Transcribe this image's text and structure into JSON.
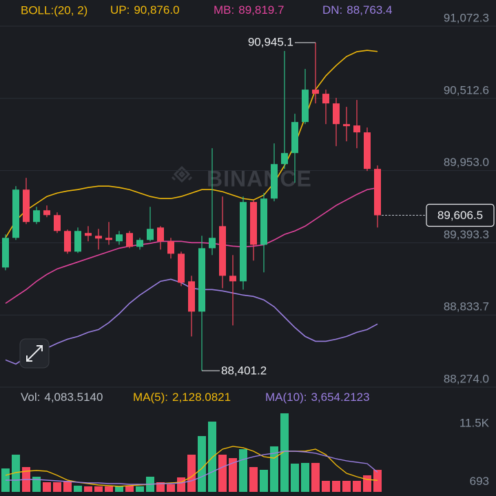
{
  "chart_data": [
    {
      "type": "candlestick",
      "indicator": "BOLL:(20, 2)",
      "watermark": "BINANCE",
      "up_color": "#2ebd85",
      "down_color": "#f6465d",
      "candles": {
        "open": [
          89201.6,
          89431.4,
          89805.5,
          89554.3,
          89645.2,
          89607.8,
          89484.8,
          89324.5,
          89468.8,
          89447.4,
          89431.4,
          89404.7,
          89468.8,
          89361.9,
          89415.3,
          89511.6,
          89404.7,
          89308.4,
          89094.6,
          88859.5,
          89351.2,
          89522.2,
          89137.4,
          89094.6,
          89709.3,
          89377.9,
          89736.0,
          90003.3,
          90088.8,
          90329.3,
          90580.6,
          90548.5,
          90473.7,
          90313.3,
          90302.6,
          90249.2,
          89965.9
        ],
        "high": [
          89458.1,
          89832.3,
          89896.4,
          89671.9,
          89682.6,
          89629.1,
          89495.5,
          89511.6,
          89522.2,
          89500.9,
          89554.3,
          89484.8,
          89484.8,
          89431.4,
          89671.9,
          89522.2,
          89431.4,
          89324.5,
          89137.4,
          89447.4,
          90126.2,
          89752.1,
          89297.8,
          89752.1,
          89725.4,
          89778.8,
          90163.6,
          90879.9,
          90393.5,
          90740.9,
          90945.1,
          90580.6,
          90516.4,
          90446.9,
          90500.4,
          90286.6,
          89992.6
        ],
        "low": [
          89180.2,
          89415.3,
          89538.3,
          89538.3,
          89591.7,
          89468.8,
          89308.4,
          89313.8,
          89404.7,
          89340.5,
          89377.9,
          89377.9,
          89351.2,
          89340.5,
          89404.7,
          89340.5,
          89271.0,
          89057.2,
          88667.0,
          88401.2,
          89297.8,
          89041.2,
          88752.6,
          89030.5,
          89255.0,
          89164.1,
          89714.7,
          89965.9,
          89859.0,
          90313.3,
          90473.7,
          90313.3,
          90142.3,
          90179.7,
          90126.2,
          89949.8,
          89511.6
        ],
        "close": [
          89431.4,
          89805.5,
          89554.3,
          89645.2,
          89607.8,
          89484.8,
          89324.5,
          89484.8,
          89447.4,
          89426.0,
          89415.3,
          89458.1,
          89361.9,
          89415.3,
          89500.9,
          89404.7,
          89308.4,
          89084.0,
          88859.5,
          89351.2,
          89431.4,
          89137.4,
          89094.6,
          89709.3,
          89377.9,
          89736.0,
          90003.3,
          90088.8,
          90329.3,
          90580.6,
          90548.5,
          90473.7,
          90313.3,
          90297.3,
          90249.2,
          89965.9,
          89606.5
        ]
      },
      "overlays": [
        {
          "name": "UP:",
          "color": "#f0b90b",
          "last_label": "90,876.0",
          "values": [
            89431.4,
            89565.0,
            89645.2,
            89698.6,
            89752.1,
            89778.8,
            89794.8,
            89805.5,
            89821.6,
            89832.3,
            89832.3,
            89821.6,
            89805.5,
            89778.8,
            89752.1,
            89736.0,
            89736.0,
            89752.1,
            89778.8,
            89805.5,
            89805.5,
            89789.5,
            89762.8,
            89736.0,
            89725.4,
            89762.8,
            89859.0,
            89992.6,
            90153.0,
            90366.8,
            90580.6,
            90687.5,
            90767.6,
            90837.1,
            90874.5,
            90885.2,
            90876.0
          ]
        },
        {
          "name": "MB:",
          "color": "#e0449c",
          "last_label": "89,819.7",
          "values": [
            88923.6,
            88977.1,
            89030.5,
            89094.6,
            89148.1,
            89190.9,
            89217.6,
            89244.3,
            89271.0,
            89297.8,
            89324.5,
            89351.2,
            89367.2,
            89377.9,
            89388.6,
            89404.7,
            89404.7,
            89404.7,
            89394.0,
            89394.0,
            89388.6,
            89377.9,
            89367.2,
            89361.9,
            89367.2,
            89377.9,
            89415.3,
            89458.1,
            89484.8,
            89522.2,
            89575.7,
            89629.1,
            89682.6,
            89725.4,
            89768.1,
            89805.5,
            89819.7
          ]
        },
        {
          "name": "DN:",
          "color": "#9a7fe0",
          "last_label": "88,763.4",
          "values": [
            88485.3,
            88453.2,
            88506.7,
            88549.5,
            88576.2,
            88613.6,
            88645.7,
            88667.0,
            88699.1,
            88720.5,
            88773.9,
            88843.4,
            88923.6,
            88987.7,
            89041.2,
            89094.6,
            89110.7,
            89084.0,
            89041.2,
            89030.5,
            89030.5,
            89019.8,
            89003.8,
            88987.7,
            88977.1,
            88950.3,
            88896.9,
            88816.7,
            88736.5,
            88667.0,
            88629.6,
            88629.6,
            88645.7,
            88667.0,
            88699.1,
            88720.5,
            88763.4
          ]
        }
      ],
      "current_price": {
        "value": 89606.5,
        "label": "89,606.5"
      },
      "extremes": [
        {
          "value": 90945.1,
          "label": "90,945.1"
        },
        {
          "value": 88401.2,
          "label": "88,401.2"
        }
      ],
      "ylim": [
        88274.0,
        91072.3
      ],
      "yticks": [
        {
          "value": 88274.0,
          "label": "88,274.0"
        },
        {
          "value": 88833.7,
          "label": "88,833.7"
        },
        {
          "value": 89393.3,
          "label": "89,393.3"
        },
        {
          "value": 89953.0,
          "label": "89,953.0"
        },
        {
          "value": 90512.6,
          "label": "90,512.6"
        },
        {
          "value": 91072.3,
          "label": "91,072.3"
        }
      ],
      "grid": true
    },
    {
      "type": "bar",
      "series": [
        {
          "name": "Vol:",
          "color": "#b7bdc6",
          "last_label": "4,083.5140",
          "values": [
            4345,
            6901,
            4601,
            2812,
            1789,
            1789,
            2045,
            1150,
            1022,
            1022,
            1022,
            1022,
            1150,
            1022,
            2812,
            1789,
            1406,
            2684,
            6901,
            10352,
            13036,
            6901,
            6262,
            7924,
            4601,
            4090,
            8435,
            14569,
            5240,
            5368,
            5368,
            2045,
            2045,
            2045,
            2045,
            3067,
            4083.514
          ]
        },
        {
          "name": "MA(5):",
          "color": "#f0b90b",
          "last_label": "2,128.0821",
          "values": [
            3067,
            3578,
            3834,
            3962,
            3834,
            3067,
            2173,
            1789,
            1534,
            1278,
            1150,
            1022,
            1150,
            1278,
            1406,
            1534,
            1661,
            1789,
            2812,
            4345,
            6390,
            7924,
            8435,
            8179,
            7540,
            6518,
            6262,
            7540,
            7540,
            7540,
            7924,
            6901,
            4984,
            3451,
            2812,
            2300,
            2128.0821
          ]
        },
        {
          "name": "MA(10):",
          "color": "#9a7fe0",
          "last_label": "3,654.2123",
          "values": [
            2173,
            2173,
            2300,
            2300,
            2173,
            2045,
            1917,
            1789,
            1661,
            1661,
            1534,
            1534,
            1406,
            1406,
            1406,
            1534,
            1534,
            1661,
            2045,
            2812,
            3706,
            4601,
            5368,
            6007,
            6518,
            6901,
            7157,
            7540,
            7540,
            7412,
            7157,
            6646,
            6134,
            5751,
            5495,
            5240,
            3654.2123
          ]
        }
      ],
      "ylim": [
        0,
        18400
      ],
      "yticks": [
        {
          "value": 693,
          "label": "693"
        },
        {
          "value": 11500,
          "label": "11.5K"
        }
      ]
    }
  ]
}
